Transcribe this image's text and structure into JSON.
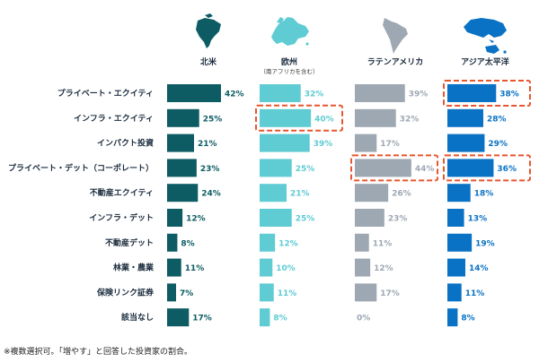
{
  "chart_data": {
    "type": "bar",
    "orientation": "horizontal",
    "categories": [
      "プライベート・エクイティ",
      "インフラ・エクイティ",
      "インパクト投資",
      "プライベート・デット（コーポレート）",
      "不動産エクイティ",
      "インフラ・デット",
      "不動産デット",
      "林業・農業",
      "保険リンク証券",
      "該当なし"
    ],
    "series": [
      {
        "name": "北米",
        "subtitle": "",
        "color": "#0d5c63",
        "icon": "north-america-map-icon",
        "values": [
          42,
          25,
          21,
          23,
          24,
          12,
          8,
          11,
          7,
          17
        ],
        "labels": [
          "42%",
          "25%",
          "21%",
          "23%",
          "24%",
          "12%",
          "8%",
          "11%",
          "7%",
          "17%"
        ],
        "highlighted": []
      },
      {
        "name": "欧州",
        "subtitle": "（南アフリカを含む）",
        "color": "#5fcbd3",
        "icon": "europe-map-icon",
        "values": [
          32,
          40,
          39,
          25,
          21,
          25,
          12,
          10,
          11,
          8
        ],
        "labels": [
          "32%",
          "40%",
          "39%",
          "25%",
          "21%",
          "25%",
          "12%",
          "10%",
          "11%",
          "8%"
        ],
        "highlighted": [
          1
        ]
      },
      {
        "name": "ラテンアメリカ",
        "subtitle": "",
        "color": "#9ea8b3",
        "icon": "latin-america-map-icon",
        "values": [
          39,
          32,
          17,
          44,
          26,
          23,
          11,
          12,
          17,
          0
        ],
        "labels": [
          "39%",
          "32%",
          "17%",
          "44%",
          "26%",
          "23%",
          "11%",
          "12%",
          "17%",
          "0%"
        ],
        "highlighted": [
          3
        ]
      },
      {
        "name": "アジア太平洋",
        "subtitle": "",
        "color": "#0a72c4",
        "icon": "asia-pacific-map-icon",
        "values": [
          38,
          28,
          29,
          36,
          18,
          13,
          19,
          14,
          11,
          8
        ],
        "labels": [
          "38%",
          "28%",
          "29%",
          "36%",
          "18%",
          "13%",
          "19%",
          "14%",
          "11%",
          "8%"
        ],
        "highlighted": [
          0,
          3
        ]
      }
    ],
    "highlight_color": "#e8562e",
    "xlim": [
      0,
      50
    ],
    "footnote": "※複数選択可。「増やす」と回答した投資家の割合。"
  }
}
